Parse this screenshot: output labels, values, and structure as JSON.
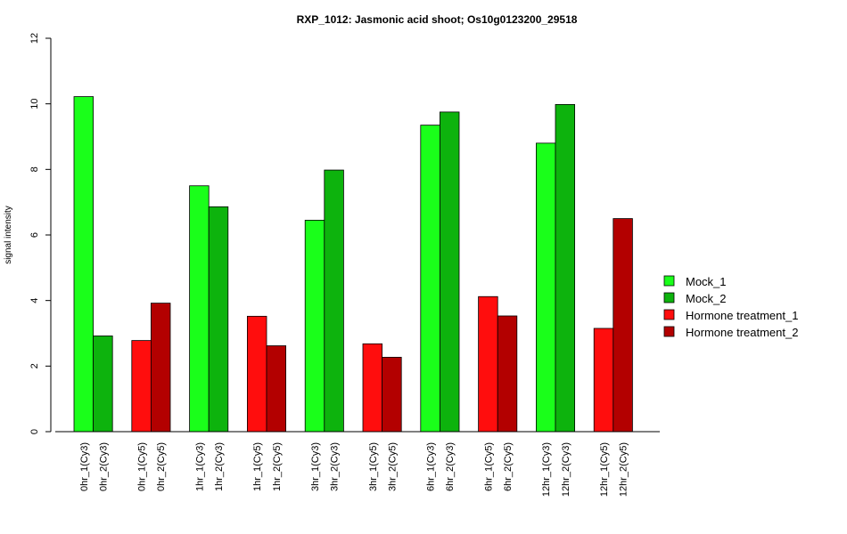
{
  "chart_data": {
    "type": "bar",
    "title": "RXP_1012: Jasmonic acid shoot; Os10g0123200_29518",
    "xlabel": "",
    "ylabel": "signal intensity",
    "ylim": [
      0,
      12
    ],
    "yticks": [
      0,
      2,
      4,
      6,
      8,
      10,
      12
    ],
    "grid": false,
    "legend_position": "right",
    "colors": {
      "Mock_1": "#1aff1a",
      "Mock_2": "#0db30d",
      "Hormone treatment_1": "#ff0d0d",
      "Hormone treatment_2": "#b30000"
    },
    "legend": [
      "Mock_1",
      "Mock_2",
      "Hormone treatment_1",
      "Hormone treatment_2"
    ],
    "bars": [
      {
        "label": "0hr_1(Cy3)",
        "value": 10.22,
        "series": "Mock_1"
      },
      {
        "label": "0hr_2(Cy3)",
        "value": 2.92,
        "series": "Mock_2"
      },
      {
        "label": "0hr_1(Cy5)",
        "value": 2.78,
        "series": "Hormone treatment_1"
      },
      {
        "label": "0hr_2(Cy5)",
        "value": 3.92,
        "series": "Hormone treatment_2"
      },
      {
        "label": "1hr_1(Cy3)",
        "value": 7.5,
        "series": "Mock_1"
      },
      {
        "label": "1hr_2(Cy3)",
        "value": 6.86,
        "series": "Mock_2"
      },
      {
        "label": "1hr_1(Cy5)",
        "value": 3.52,
        "series": "Hormone treatment_1"
      },
      {
        "label": "1hr_2(Cy5)",
        "value": 2.62,
        "series": "Hormone treatment_2"
      },
      {
        "label": "3hr_1(Cy3)",
        "value": 6.45,
        "series": "Mock_1"
      },
      {
        "label": "3hr_2(Cy3)",
        "value": 7.98,
        "series": "Mock_2"
      },
      {
        "label": "3hr_1(Cy5)",
        "value": 2.68,
        "series": "Hormone treatment_1"
      },
      {
        "label": "3hr_2(Cy5)",
        "value": 2.27,
        "series": "Hormone treatment_2"
      },
      {
        "label": "6hr_1(Cy3)",
        "value": 9.35,
        "series": "Mock_1"
      },
      {
        "label": "6hr_2(Cy3)",
        "value": 9.75,
        "series": "Mock_2"
      },
      {
        "label": "6hr_1(Cy5)",
        "value": 4.12,
        "series": "Hormone treatment_1"
      },
      {
        "label": "6hr_2(Cy5)",
        "value": 3.53,
        "series": "Hormone treatment_2"
      },
      {
        "label": "12hr_1(Cy3)",
        "value": 8.8,
        "series": "Mock_1"
      },
      {
        "label": "12hr_2(Cy3)",
        "value": 9.98,
        "series": "Mock_2"
      },
      {
        "label": "12hr_1(Cy5)",
        "value": 3.15,
        "series": "Hormone treatment_1"
      },
      {
        "label": "12hr_2(Cy5)",
        "value": 6.5,
        "series": "Hormone treatment_2"
      }
    ]
  }
}
